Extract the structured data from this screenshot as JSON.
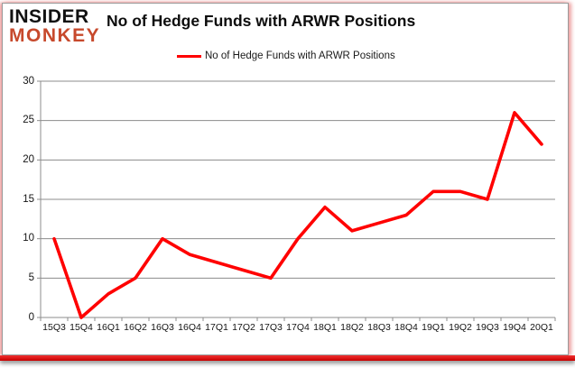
{
  "logo": {
    "line1": "INSIDER",
    "line2": "MONKEY",
    "line1_color": "#111111",
    "line2_color": "#c7492c"
  },
  "header": {
    "title": "No of Hedge Funds with ARWR Positions"
  },
  "legend": {
    "label": "No of Hedge Funds with ARWR Positions",
    "swatch_color": "#ff0000"
  },
  "chart_data": {
    "type": "line",
    "title": "No of Hedge Funds with ARWR Positions",
    "categories": [
      "15Q3",
      "15Q4",
      "16Q1",
      "16Q2",
      "16Q3",
      "16Q4",
      "17Q1",
      "17Q2",
      "17Q3",
      "17Q4",
      "18Q1",
      "18Q2",
      "18Q3",
      "18Q4",
      "19Q1",
      "19Q2",
      "19Q3",
      "19Q4",
      "20Q1"
    ],
    "series": [
      {
        "name": "No of Hedge Funds with ARWR Positions",
        "values": [
          10,
          0,
          3,
          5,
          10,
          8,
          7,
          6,
          5,
          10,
          14,
          11,
          12,
          13,
          16,
          16,
          15,
          26,
          22
        ]
      }
    ],
    "xlabel": "",
    "ylabel": "",
    "ylim": [
      0,
      30
    ],
    "yticks": [
      0,
      5,
      10,
      15,
      20,
      25,
      30
    ],
    "grid": true,
    "legend_position": "top",
    "line_color": "#ff0000",
    "grid_color": "#8c8c8c"
  }
}
